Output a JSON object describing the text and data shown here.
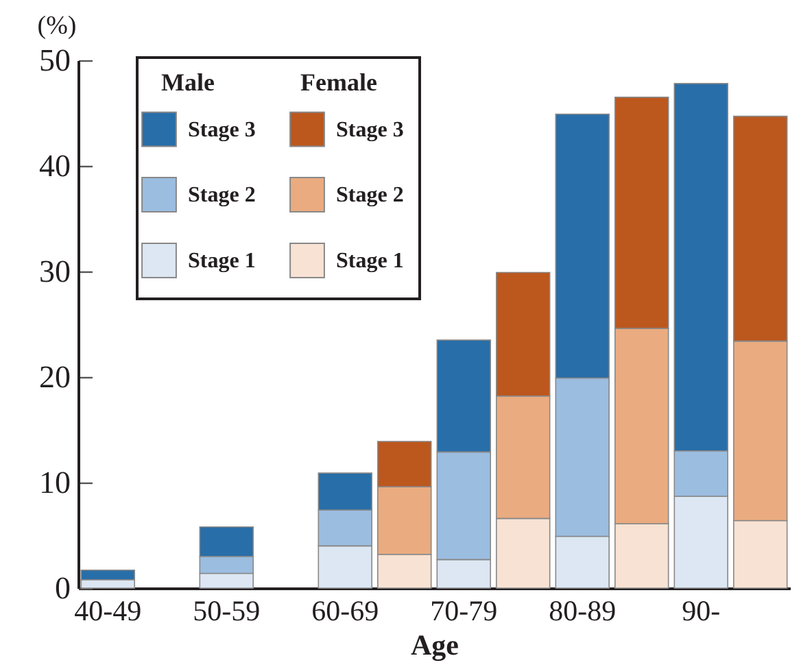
{
  "chart_data": {
    "type": "bar",
    "stacked": true,
    "xlabel": "Age",
    "ylabel": "(%)",
    "categories": [
      "40-49",
      null,
      "50-59",
      null,
      "60-69",
      null,
      "70-79",
      null,
      "80-89",
      null,
      "90-",
      null
    ],
    "series": [
      {
        "name": "Stage 1",
        "color": "#dce7f3",
        "values": [
          0.8,
          null,
          1.4,
          null,
          4.0,
          null,
          2.7,
          null,
          4.9,
          null,
          8.7,
          null
        ]
      },
      {
        "name": "Stage 2",
        "color": "#9bbde0",
        "values": [
          null,
          null,
          1.6,
          null,
          3.4,
          null,
          10.2,
          null,
          15.0,
          null,
          4.3,
          null
        ]
      },
      {
        "name": "Stage 3",
        "color": "#286ea8",
        "values": [
          0.9,
          null,
          2.8,
          null,
          3.5,
          null,
          10.6,
          null,
          25.0,
          null,
          34.8,
          null
        ]
      },
      {
        "name": "Stage 1",
        "color": "#f8e2d3",
        "values": [
          null,
          null,
          null,
          null,
          null,
          3.2,
          null,
          6.6,
          null,
          6.1,
          null,
          6.4
        ]
      },
      {
        "name": "Stage 2",
        "color": "#eaab80",
        "values": [
          null,
          null,
          null,
          null,
          null,
          6.4,
          null,
          11.6,
          null,
          18.5,
          null,
          17.0
        ]
      },
      {
        "name": "Stage 3",
        "color": "#bc571e",
        "values": [
          null,
          null,
          null,
          null,
          null,
          4.3,
          null,
          11.7,
          null,
          21.9,
          null,
          21.3
        ]
      }
    ],
    "annotations": [
      "Male",
      "Female"
    ],
    "ylim": [
      0,
      50
    ],
    "yticks": [
      0,
      10,
      20,
      30,
      40,
      50
    ],
    "grid": false,
    "legend": "top left"
  }
}
